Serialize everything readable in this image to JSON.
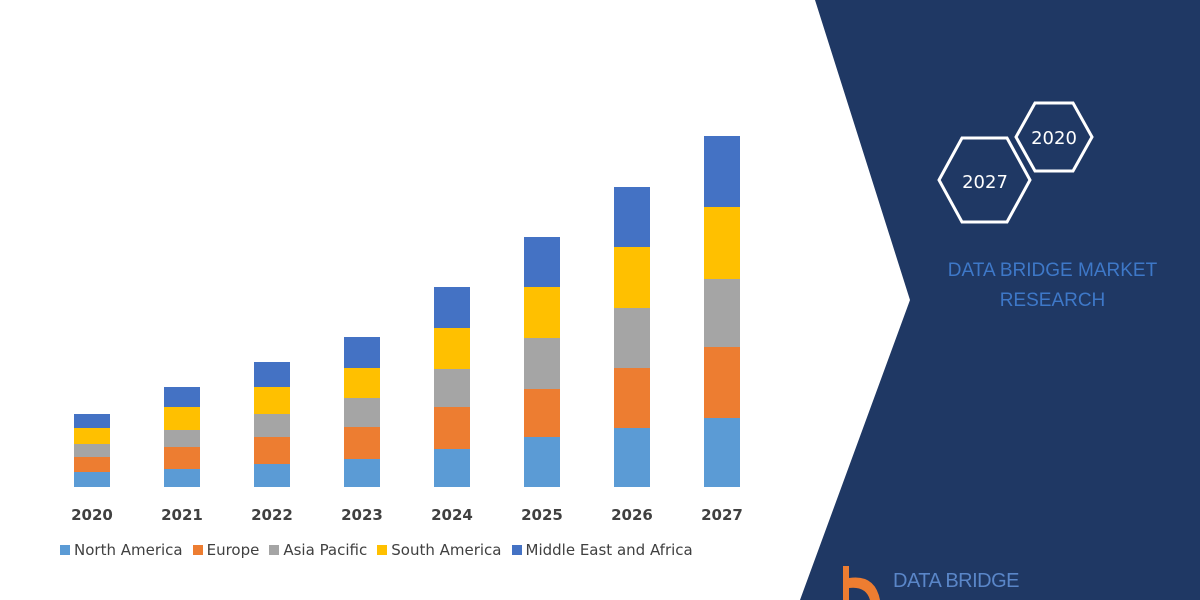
{
  "chart_data": {
    "type": "bar",
    "stacked": true,
    "categories": [
      "2020",
      "2021",
      "2022",
      "2023",
      "2024",
      "2025",
      "2026",
      "2027"
    ],
    "series": [
      {
        "name": "North America",
        "color": "#5b9bd5",
        "values": [
          15,
          18,
          23,
          28,
          38,
          50,
          59,
          69
        ]
      },
      {
        "name": "Europe",
        "color": "#ed7d31",
        "values": [
          15,
          22,
          27,
          32,
          42,
          48,
          60,
          71
        ]
      },
      {
        "name": "Asia Pacific",
        "color": "#a5a5a5",
        "values": [
          13,
          17,
          23,
          29,
          38,
          51,
          60,
          68
        ]
      },
      {
        "name": "South America",
        "color": "#ffc000",
        "values": [
          16,
          23,
          27,
          30,
          41,
          51,
          61,
          72
        ]
      },
      {
        "name": "Middle East and Africa",
        "color": "#4472c4",
        "values": [
          14,
          20,
          25,
          31,
          41,
          50,
          60,
          71
        ]
      }
    ],
    "title": "",
    "xlabel": "",
    "ylabel": "",
    "y_axis_shown": false,
    "grid": false,
    "legend_position": "bottom"
  },
  "panel": {
    "hexagons": [
      "2020",
      "2027"
    ],
    "brand_line1": "DATA BRIDGE MARKET",
    "brand_line2": "RESEARCH",
    "logo_text": "DATA BRIDGE",
    "background_color": "#1f3864",
    "brand_color": "#3e78c8"
  }
}
